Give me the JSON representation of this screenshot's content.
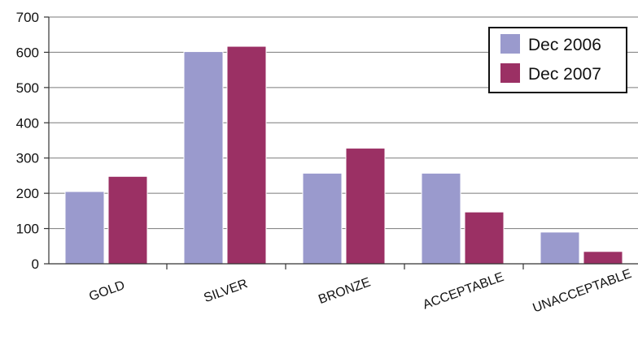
{
  "chart_data": {
    "type": "bar",
    "categories": [
      "GOLD",
      "SILVER",
      "BRONZE",
      "ACCEPTABLE",
      "UNACCEPTABLE"
    ],
    "series": [
      {
        "name": "Dec 2006",
        "values": [
          205,
          602,
          257,
          257,
          90
        ],
        "color": "#9a9acd"
      },
      {
        "name": "Dec 2007",
        "values": [
          248,
          617,
          328,
          147,
          35
        ],
        "color": "#9b3064"
      }
    ],
    "ylim": [
      0,
      700
    ],
    "yticks": [
      0,
      100,
      200,
      300,
      400,
      500,
      600,
      700
    ],
    "grid": true,
    "legend": "top-right"
  }
}
